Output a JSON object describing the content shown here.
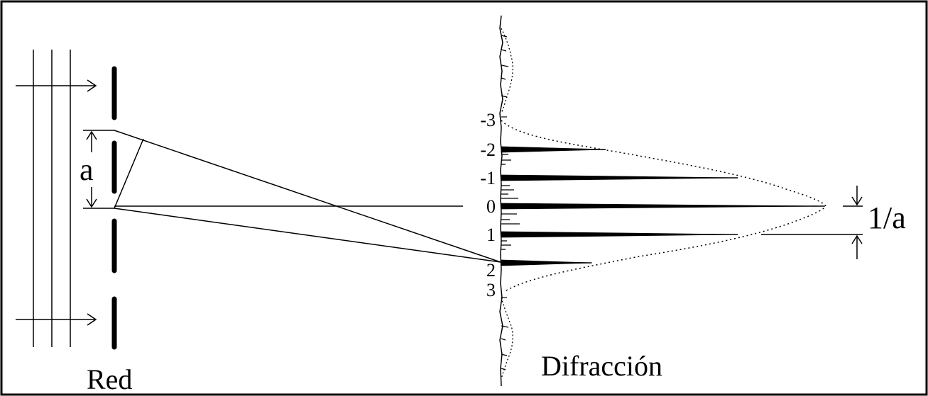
{
  "labels": {
    "grating": "Red",
    "diffraction": "Difracción",
    "slit_spacing": "a",
    "peak_spacing": "1/a"
  },
  "orders": [
    "-3",
    "-2",
    "-1",
    "0",
    "1",
    "2",
    "3"
  ],
  "peaks": [
    {
      "order": "-2",
      "height": 0.3
    },
    {
      "order": "-1",
      "height": 0.68
    },
    {
      "order": "0",
      "height": 0.93
    },
    {
      "order": "1",
      "height": 0.68
    },
    {
      "order": "2",
      "height": 0.26
    }
  ],
  "colors": {
    "ink": "#000000",
    "background": "#ffffff"
  }
}
